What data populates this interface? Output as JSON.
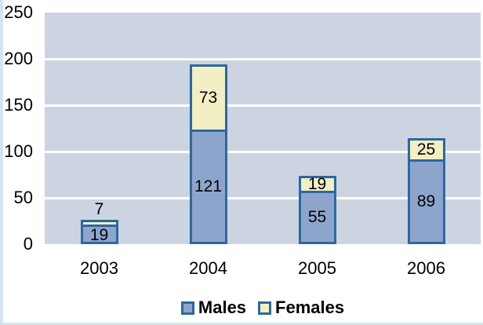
{
  "chart_data": {
    "type": "bar",
    "stacked": true,
    "categories": [
      "2003",
      "2004",
      "2005",
      "2006"
    ],
    "series": [
      {
        "name": "Males",
        "values": [
          19,
          121,
          55,
          89
        ],
        "color": "#8DA5CC"
      },
      {
        "name": "Females",
        "values": [
          7,
          73,
          19,
          25
        ],
        "color": "#F1EFC3"
      }
    ],
    "ylim": [
      0,
      250
    ],
    "yticks": [
      0,
      50,
      100,
      150,
      200,
      250
    ],
    "grid": true,
    "legend_position": "bottom",
    "data_labels": true,
    "colors": {
      "bar_border": "#2D689E",
      "plot_background": "#CDD4E1",
      "gridline": "#FFFFFF",
      "text": "#000000",
      "page_edge": "#D7E4EF"
    }
  }
}
